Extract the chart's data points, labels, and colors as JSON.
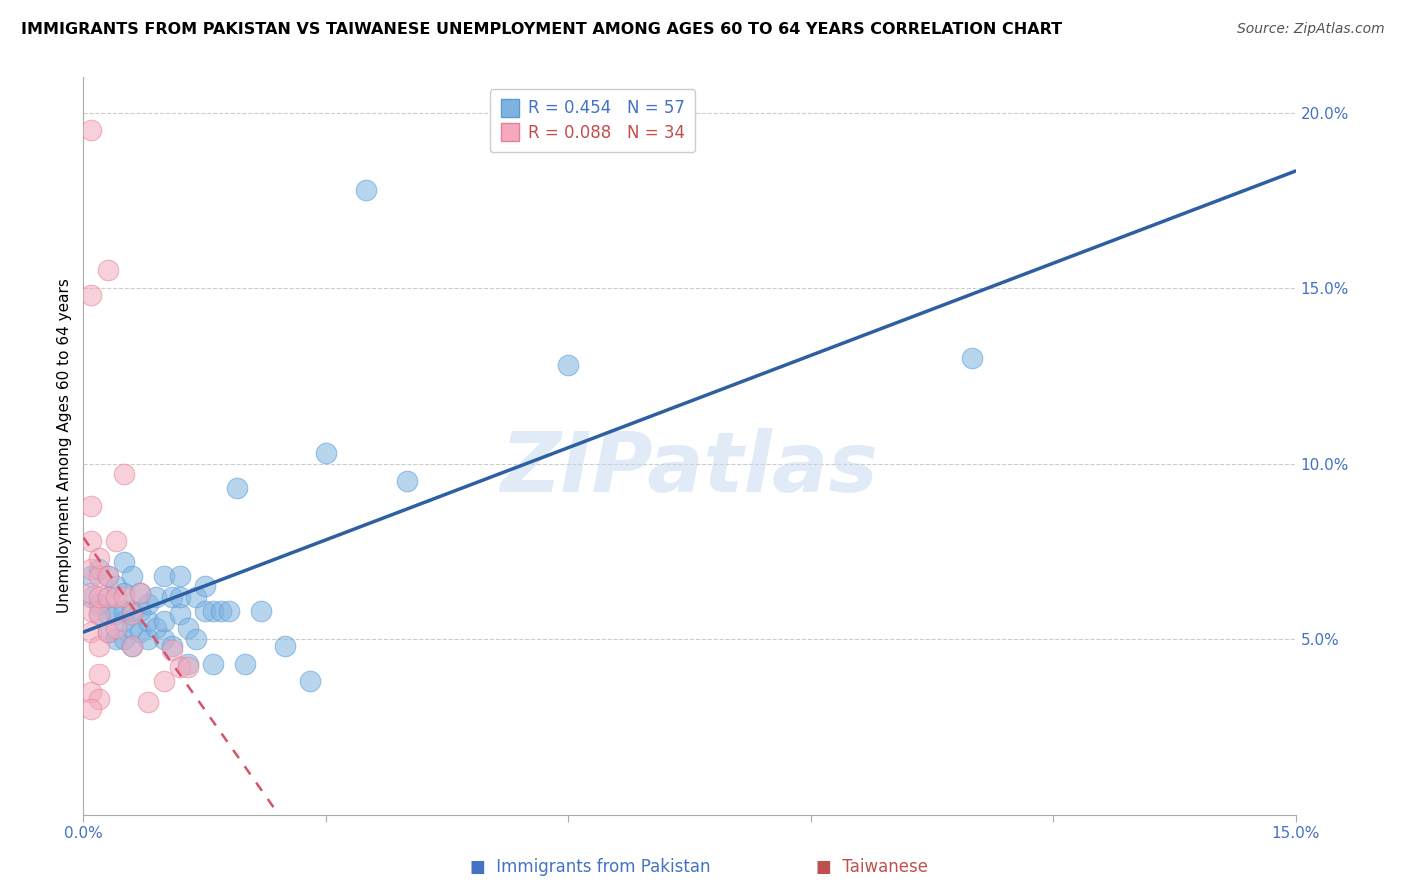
{
  "title": "IMMIGRANTS FROM PAKISTAN VS TAIWANESE UNEMPLOYMENT AMONG AGES 60 TO 64 YEARS CORRELATION CHART",
  "source": "Source: ZipAtlas.com",
  "ylabel": "Unemployment Among Ages 60 to 64 years",
  "xlim": [
    0.0,
    0.15
  ],
  "ylim": [
    0.0,
    0.21
  ],
  "yticks_right": [
    0.05,
    0.1,
    0.15,
    0.2
  ],
  "ytick_labels_right": [
    "5.0%",
    "10.0%",
    "15.0%",
    "20.0%"
  ],
  "xtick_positions": [
    0.0,
    0.03,
    0.06,
    0.09,
    0.12,
    0.15
  ],
  "xtick_labels_show": [
    "0.0%",
    "",
    "",
    "",
    "",
    "15.0%"
  ],
  "blue_color": "#7EB3E0",
  "blue_edge_color": "#5B9BD5",
  "pink_color": "#F4AABC",
  "pink_edge_color": "#E87F9A",
  "trend_blue_color": "#2E5FA3",
  "trend_pink_color": "#D4546A",
  "legend_R_blue": "R = 0.454",
  "legend_N_blue": "N = 57",
  "legend_R_pink": "R = 0.088",
  "legend_N_pink": "N = 34",
  "blue_scatter_x": [
    0.001,
    0.001,
    0.002,
    0.002,
    0.002,
    0.003,
    0.003,
    0.003,
    0.003,
    0.004,
    0.004,
    0.004,
    0.005,
    0.005,
    0.005,
    0.005,
    0.005,
    0.006,
    0.006,
    0.006,
    0.006,
    0.007,
    0.007,
    0.007,
    0.008,
    0.008,
    0.008,
    0.009,
    0.009,
    0.01,
    0.01,
    0.01,
    0.011,
    0.011,
    0.012,
    0.012,
    0.012,
    0.013,
    0.013,
    0.014,
    0.014,
    0.015,
    0.015,
    0.016,
    0.016,
    0.017,
    0.018,
    0.019,
    0.02,
    0.022,
    0.025,
    0.028,
    0.03,
    0.035,
    0.04,
    0.06,
    0.11
  ],
  "blue_scatter_y": [
    0.062,
    0.068,
    0.057,
    0.06,
    0.07,
    0.052,
    0.057,
    0.062,
    0.068,
    0.05,
    0.057,
    0.065,
    0.05,
    0.055,
    0.058,
    0.063,
    0.072,
    0.048,
    0.053,
    0.058,
    0.068,
    0.052,
    0.058,
    0.063,
    0.05,
    0.055,
    0.06,
    0.053,
    0.062,
    0.05,
    0.055,
    0.068,
    0.048,
    0.062,
    0.057,
    0.062,
    0.068,
    0.043,
    0.053,
    0.062,
    0.05,
    0.058,
    0.065,
    0.043,
    0.058,
    0.058,
    0.058,
    0.093,
    0.043,
    0.058,
    0.048,
    0.038,
    0.103,
    0.178,
    0.095,
    0.128,
    0.13
  ],
  "pink_scatter_x": [
    0.001,
    0.001,
    0.001,
    0.001,
    0.001,
    0.001,
    0.001,
    0.001,
    0.002,
    0.002,
    0.002,
    0.002,
    0.002,
    0.002,
    0.002,
    0.003,
    0.003,
    0.003,
    0.003,
    0.004,
    0.004,
    0.004,
    0.005,
    0.005,
    0.006,
    0.006,
    0.007,
    0.008,
    0.01,
    0.011,
    0.012,
    0.013,
    0.001,
    0.001
  ],
  "pink_scatter_y": [
    0.195,
    0.052,
    0.058,
    0.063,
    0.07,
    0.078,
    0.088,
    0.035,
    0.048,
    0.057,
    0.062,
    0.068,
    0.073,
    0.04,
    0.033,
    0.052,
    0.062,
    0.068,
    0.155,
    0.053,
    0.062,
    0.078,
    0.062,
    0.097,
    0.048,
    0.057,
    0.063,
    0.032,
    0.038,
    0.047,
    0.042,
    0.042,
    0.148,
    0.03
  ],
  "watermark": "ZIPatlas",
  "title_fontsize": 11.5,
  "axis_label_fontsize": 11,
  "tick_fontsize": 11,
  "legend_fontsize": 12,
  "source_fontsize": 10
}
